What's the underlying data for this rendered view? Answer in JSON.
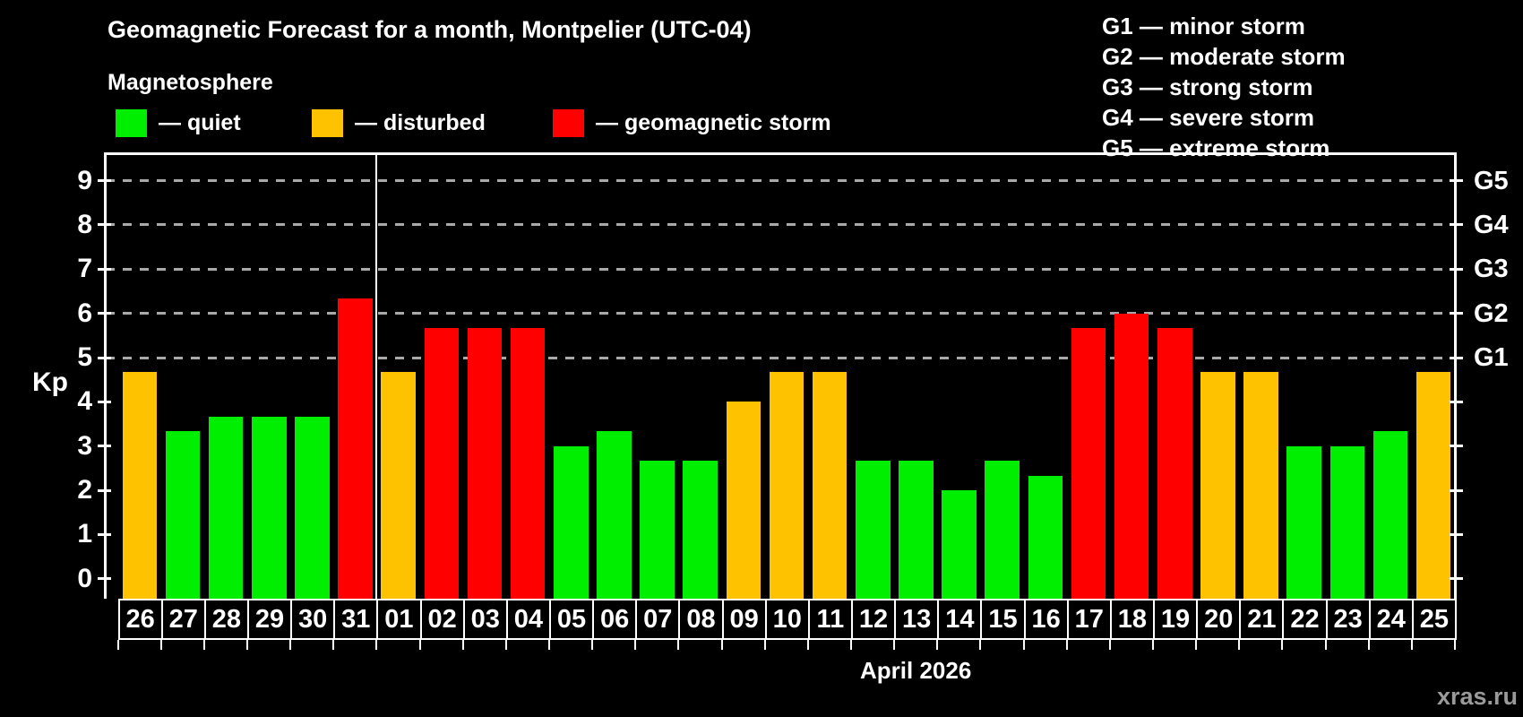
{
  "header": {
    "title": "Geomagnetic Forecast for a month, Montpelier (UTC-04)",
    "subtitle": "Magnetosphere",
    "watermark": "xras.ru"
  },
  "legend": {
    "items": [
      {
        "key": "quiet",
        "label": "— quiet",
        "color": "#00ee00"
      },
      {
        "key": "disturbed",
        "label": "— disturbed",
        "color": "#ffc200"
      },
      {
        "key": "storm",
        "label": "— geomagnetic storm",
        "color": "#ff0000"
      }
    ]
  },
  "g_legend": {
    "lines": [
      "G1 — minor storm",
      "G2 — moderate storm",
      "G3 — strong storm",
      "G4 — severe storm",
      "G5 — extreme storm"
    ]
  },
  "chart_data": {
    "type": "bar",
    "title": "Geomagnetic Forecast for a month, Montpelier (UTC-04)",
    "xlabel": "April 2026",
    "ylabel": "Kp",
    "ylim": [
      -0.45,
      9.6
    ],
    "yticks": [
      0,
      1,
      2,
      3,
      4,
      5,
      6,
      7,
      8,
      9
    ],
    "gridlines_at": [
      5,
      6,
      7,
      8,
      9
    ],
    "right_axis_labels": [
      {
        "kp": 5,
        "label": "G1"
      },
      {
        "kp": 6,
        "label": "G2"
      },
      {
        "kp": 7,
        "label": "G3"
      },
      {
        "kp": 8,
        "label": "G4"
      },
      {
        "kp": 9,
        "label": "G5"
      }
    ],
    "grid": true,
    "legend_position": "top",
    "month_separator_before": "01",
    "categories": [
      "26",
      "27",
      "28",
      "29",
      "30",
      "31",
      "01",
      "02",
      "03",
      "04",
      "05",
      "06",
      "07",
      "08",
      "09",
      "10",
      "11",
      "12",
      "13",
      "14",
      "15",
      "16",
      "17",
      "18",
      "19",
      "20",
      "21",
      "22",
      "23",
      "24",
      "25"
    ],
    "values": [
      4.67,
      3.33,
      3.67,
      3.67,
      3.67,
      6.33,
      4.67,
      5.67,
      5.67,
      5.67,
      3.0,
      3.33,
      2.67,
      2.67,
      4.0,
      4.67,
      4.67,
      2.67,
      2.67,
      2.0,
      2.67,
      2.33,
      5.67,
      6.0,
      5.67,
      4.67,
      4.67,
      3.0,
      3.0,
      3.33,
      4.67
    ],
    "statuses": [
      "disturbed",
      "quiet",
      "quiet",
      "quiet",
      "quiet",
      "storm",
      "disturbed",
      "storm",
      "storm",
      "storm",
      "quiet",
      "quiet",
      "quiet",
      "quiet",
      "disturbed",
      "disturbed",
      "disturbed",
      "quiet",
      "quiet",
      "quiet",
      "quiet",
      "quiet",
      "storm",
      "storm",
      "storm",
      "disturbed",
      "disturbed",
      "quiet",
      "quiet",
      "quiet",
      "disturbed"
    ]
  },
  "colors": {
    "background": "#000000",
    "quiet": "#00ee00",
    "disturbed": "#ffc200",
    "storm": "#ff0000",
    "axis": "#ffffff",
    "gridline": "#a9a9a9",
    "watermark": "#9a9a9a"
  }
}
